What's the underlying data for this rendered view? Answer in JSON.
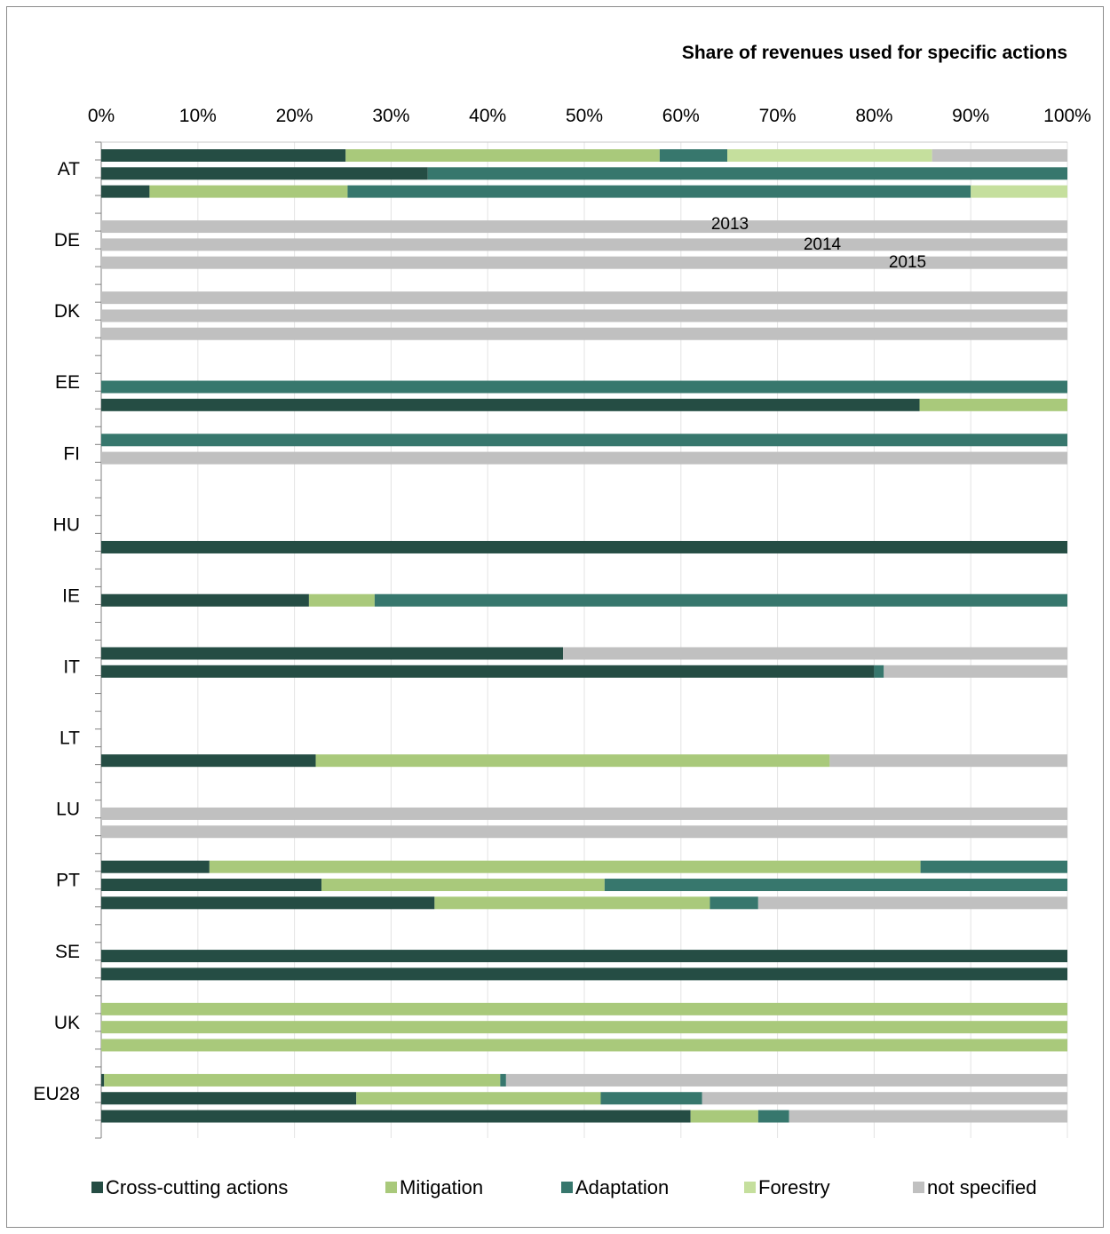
{
  "chart_data": {
    "type": "bar",
    "orientation": "horizontal",
    "stacked": "100%",
    "title": "Share of revenues used for specific actions",
    "xlim": [
      0,
      100
    ],
    "xticks": [
      "0%",
      "10%",
      "20%",
      "30%",
      "40%",
      "50%",
      "60%",
      "70%",
      "80%",
      "90%",
      "100%"
    ],
    "grid": true,
    "legend_position": "bottom",
    "years": [
      "2013",
      "2014",
      "2015"
    ],
    "series": [
      {
        "name": "Cross-cutting actions",
        "color": "#254d44"
      },
      {
        "name": "Mitigation",
        "color": "#a9c97b"
      },
      {
        "name": "Adaptation",
        "color": "#37776d"
      },
      {
        "name": "Forestry",
        "color": "#c5df9d"
      },
      {
        "name": "not specified",
        "color": "#c0c0c0"
      }
    ],
    "countries": [
      {
        "label": "AT",
        "rows": [
          [
            25.3,
            32.5,
            7.0,
            21.2,
            14.0
          ],
          [
            33.8,
            0,
            66.2,
            0,
            0
          ],
          [
            5.0,
            20.5,
            64.5,
            10.0,
            0
          ]
        ]
      },
      {
        "label": "DE",
        "rows": [
          [
            0,
            0,
            0,
            0,
            100
          ],
          [
            0,
            0,
            0,
            0,
            100
          ],
          [
            0,
            0,
            0,
            0,
            100
          ]
        ]
      },
      {
        "label": "DK",
        "rows": [
          [
            0,
            0,
            0,
            0,
            100
          ],
          [
            0,
            0,
            0,
            0,
            100
          ],
          [
            0,
            0,
            0,
            0,
            100
          ]
        ]
      },
      {
        "label": "EE",
        "rows": [
          null,
          [
            0,
            0,
            100,
            0,
            0
          ],
          [
            84.7,
            15.3,
            0,
            0,
            0
          ]
        ]
      },
      {
        "label": "FI",
        "rows": [
          [
            0,
            0,
            100,
            0,
            0
          ],
          [
            0,
            0,
            0,
            0,
            100
          ],
          null
        ]
      },
      {
        "label": "HU",
        "rows": [
          null,
          null,
          [
            100,
            0,
            0,
            0,
            0
          ]
        ]
      },
      {
        "label": "IE",
        "rows": [
          null,
          [
            21.5,
            6.8,
            71.7,
            0,
            0
          ],
          null
        ]
      },
      {
        "label": "IT",
        "rows": [
          [
            47.8,
            0,
            0,
            0,
            52.2
          ],
          [
            80.0,
            0,
            1.0,
            0,
            19.0
          ],
          null
        ]
      },
      {
        "label": "LT",
        "rows": [
          null,
          null,
          [
            22.2,
            53.2,
            0,
            0,
            24.6
          ]
        ]
      },
      {
        "label": "LU",
        "rows": [
          null,
          [
            0,
            0,
            0,
            0,
            100
          ],
          [
            0,
            0,
            0,
            0,
            100
          ]
        ]
      },
      {
        "label": "PT",
        "rows": [
          [
            11.2,
            73.6,
            15.2,
            0,
            0
          ],
          [
            22.8,
            29.3,
            47.9,
            0,
            0
          ],
          [
            34.5,
            28.5,
            5.0,
            0,
            32.0
          ]
        ]
      },
      {
        "label": "SE",
        "rows": [
          null,
          [
            100,
            0,
            0,
            0,
            0
          ],
          [
            100,
            0,
            0,
            0,
            0
          ]
        ]
      },
      {
        "label": "UK",
        "rows": [
          [
            0,
            100,
            0,
            0,
            0
          ],
          [
            0,
            100,
            0,
            0,
            0
          ],
          [
            0,
            100,
            0,
            0,
            0
          ]
        ]
      },
      {
        "label": "EU28",
        "rows": [
          [
            0.3,
            41.0,
            0.6,
            0,
            58.1
          ],
          [
            26.4,
            25.3,
            10.5,
            0,
            37.8
          ],
          [
            61.0,
            7.0,
            3.2,
            0,
            28.8
          ]
        ]
      }
    ]
  }
}
